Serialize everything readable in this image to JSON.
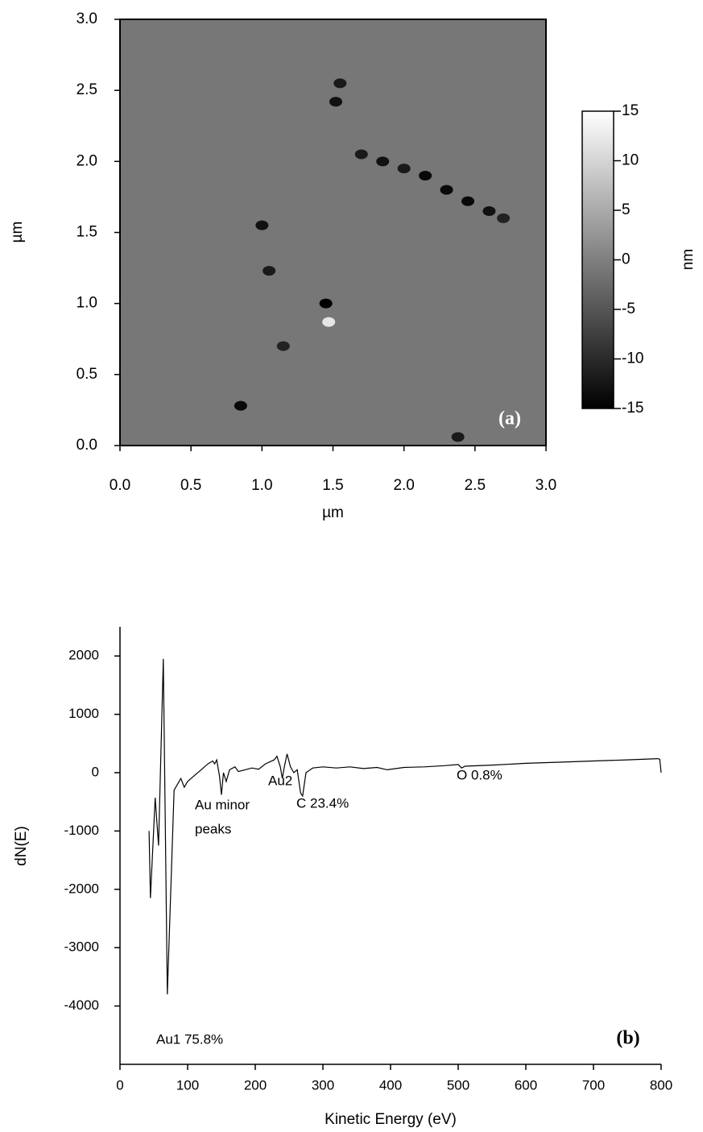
{
  "chart_data": [
    {
      "type": "heatmap",
      "xlabel": "µm",
      "ylabel": "µm",
      "xlim": [
        0,
        3
      ],
      "ylim": [
        0,
        3
      ],
      "xticks": [
        {
          "value": 0,
          "label": "0.0"
        },
        0.5,
        {
          "value": 1,
          "label": "1.0"
        },
        1.5,
        {
          "value": 2,
          "label": "2.0"
        },
        2.5,
        {
          "value": 3,
          "label": "3.0"
        }
      ],
      "yticks": [
        {
          "value": 0,
          "label": "0.0"
        },
        0.5,
        {
          "value": 1,
          "label": "1.0"
        },
        1.5,
        {
          "value": 2,
          "label": "2.0"
        },
        2.5,
        {
          "value": 3,
          "label": "3.0"
        }
      ],
      "background": -1,
      "points": {
        "x": [
          0.85,
          1.0,
          1.05,
          1.45,
          1.47,
          1.15,
          1.55,
          1.52,
          1.7,
          1.85,
          2.0,
          2.15,
          2.3,
          2.45,
          2.6,
          2.7,
          2.38
        ],
        "y": [
          0.28,
          1.55,
          1.23,
          1.0,
          0.87,
          0.7,
          2.55,
          2.42,
          2.05,
          2.0,
          1.95,
          1.9,
          1.8,
          1.72,
          1.65,
          1.6,
          0.06
        ],
        "values": [
          -14,
          -13,
          -12,
          -15,
          12,
          -11,
          -12,
          -13,
          -12,
          -13,
          -12,
          -14,
          -14,
          -14,
          -13,
          -11,
          -12
        ]
      },
      "colorbar": {
        "label": "nm",
        "lim": [
          -15,
          15
        ],
        "ticks": [
          15,
          10,
          5,
          0,
          -5,
          -10,
          -15
        ]
      },
      "annotation": "(a)"
    },
    {
      "type": "line",
      "xlabel": "Kinetic Energy (eV)",
      "ylabel": "dN(E)",
      "color": "#000000",
      "xlim": [
        0,
        800
      ],
      "ylim": [
        -5000,
        2500
      ],
      "xticks": [
        0,
        100,
        200,
        300,
        400,
        500,
        600,
        700,
        800
      ],
      "yticks": [
        -4000,
        -3000,
        -2000,
        -1000,
        0,
        1000,
        2000
      ],
      "x": [
        43,
        45,
        52,
        57,
        64,
        70,
        80,
        90,
        95,
        100,
        110,
        120,
        130,
        137,
        140,
        143,
        147,
        150,
        153,
        157,
        162,
        170,
        175,
        185,
        195,
        205,
        215,
        228,
        232,
        237,
        240,
        243,
        247,
        252,
        257,
        262,
        267,
        270,
        275,
        285,
        300,
        320,
        340,
        360,
        380,
        395,
        420,
        450,
        480,
        500,
        505,
        510,
        550,
        600,
        650,
        700,
        750,
        795,
        798,
        800
      ],
      "values": [
        -1000,
        -2150,
        -430,
        -1250,
        1950,
        -3800,
        -300,
        -100,
        -250,
        -150,
        -50,
        50,
        150,
        200,
        150,
        220,
        -50,
        -380,
        0,
        -150,
        50,
        100,
        20,
        50,
        80,
        60,
        150,
        220,
        280,
        100,
        -100,
        100,
        320,
        100,
        0,
        50,
        -350,
        -400,
        0,
        80,
        100,
        80,
        100,
        70,
        90,
        50,
        90,
        100,
        120,
        140,
        80,
        110,
        130,
        160,
        180,
        200,
        220,
        240,
        230,
        0
      ],
      "annotations": [
        {
          "text": "Au minor"
        },
        {
          "text": "peaks"
        },
        {
          "text": "Au2"
        },
        {
          "text": "C 23.4%"
        },
        {
          "text": "O 0.8%"
        },
        {
          "text": "Au1 75.8%"
        }
      ],
      "annotation": "(b)"
    }
  ]
}
